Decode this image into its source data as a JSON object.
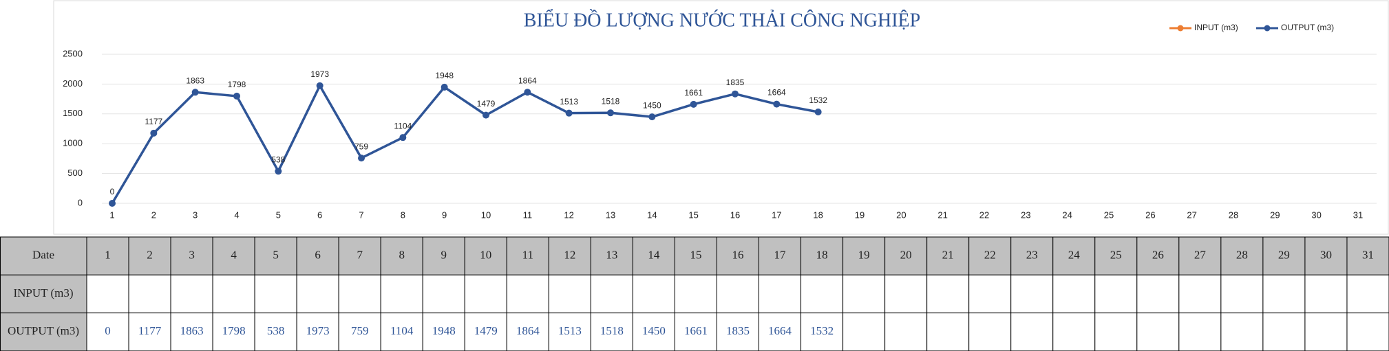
{
  "chart_data": {
    "type": "line",
    "title": "BIỂU ĐỒ LƯỢNG NƯỚC THẢI CÔNG NGHIỆP",
    "categories": [
      1,
      2,
      3,
      4,
      5,
      6,
      7,
      8,
      9,
      10,
      11,
      12,
      13,
      14,
      15,
      16,
      17,
      18,
      19,
      20,
      21,
      22,
      23,
      24,
      25,
      26,
      27,
      28,
      29,
      30,
      31
    ],
    "series": [
      {
        "name": "INPUT (m3)",
        "color": "#ed7d31",
        "values": [
          null,
          null,
          null,
          null,
          null,
          null,
          null,
          null,
          null,
          null,
          null,
          null,
          null,
          null,
          null,
          null,
          null,
          null,
          null,
          null,
          null,
          null,
          null,
          null,
          null,
          null,
          null,
          null,
          null,
          null,
          null
        ]
      },
      {
        "name": "OUTPUT (m3)",
        "color": "#2f5597",
        "values": [
          0,
          1177,
          1863,
          1798,
          538,
          1973,
          759,
          1104,
          1948,
          1479,
          1864,
          1513,
          1518,
          1450,
          1661,
          1835,
          1664,
          1532,
          null,
          null,
          null,
          null,
          null,
          null,
          null,
          null,
          null,
          null,
          null,
          null,
          null
        ]
      }
    ],
    "ylim": [
      0,
      2500
    ],
    "yticks": [
      0,
      500,
      1000,
      1500,
      2000,
      2500
    ],
    "grid": true,
    "legend": "top-right"
  },
  "table": {
    "row_header": "Date"
  }
}
